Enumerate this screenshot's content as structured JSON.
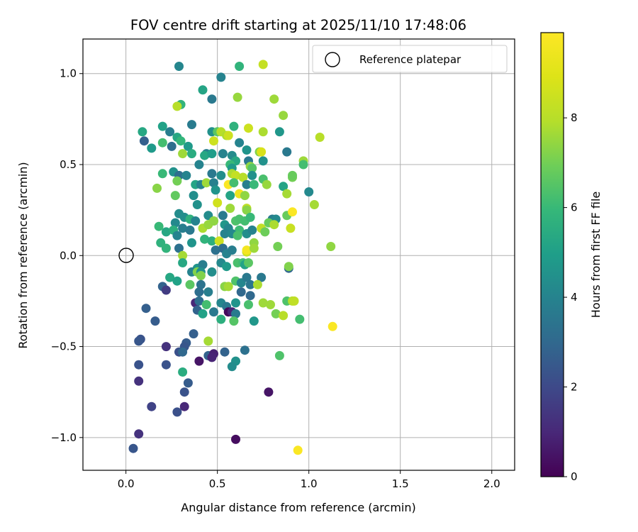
{
  "chart_data": {
    "type": "scatter",
    "title": "FOV centre drift starting at 2025/11/10 17:48:06",
    "xlabel": "Angular distance from reference (arcmin)",
    "ylabel": "Rotation from reference (arcmin)",
    "xlim": [
      -0.235,
      2.125
    ],
    "ylim": [
      -1.18,
      1.19
    ],
    "xticks": [
      0.0,
      0.5,
      1.0,
      1.5,
      2.0
    ],
    "xtick_labels": [
      "0.0",
      "0.5",
      "1.0",
      "1.5",
      "2.0"
    ],
    "yticks": [
      -1.0,
      -0.5,
      0.0,
      0.5,
      1.0
    ],
    "ytick_labels": [
      "−1.0",
      "−0.5",
      "0.0",
      "0.5",
      "1.0"
    ],
    "grid": true,
    "legend": {
      "label": "Reference platepar",
      "location": "top-right"
    },
    "reference_point": {
      "x": 0.0,
      "y": 0.0
    },
    "colorbar": {
      "label": "Hours from first FF file",
      "min": 0,
      "max": 9.9,
      "ticks": [
        0,
        2,
        4,
        6,
        8
      ],
      "tick_labels": [
        "0",
        "2",
        "4",
        "6",
        "8"
      ],
      "colormap": "viridis"
    },
    "points": [
      [
        0.29,
        1.04,
        4.1
      ],
      [
        0.52,
        0.98,
        4.0
      ],
      [
        0.62,
        1.04,
        5.8
      ],
      [
        0.75,
        1.05,
        8.3
      ],
      [
        0.42,
        0.91,
        5.2
      ],
      [
        0.47,
        0.86,
        3.6
      ],
      [
        0.61,
        0.87,
        7.5
      ],
      [
        0.81,
        0.86,
        7.6
      ],
      [
        0.3,
        0.83,
        5.8
      ],
      [
        0.28,
        0.82,
        8.0
      ],
      [
        0.86,
        0.77,
        7.5
      ],
      [
        0.36,
        0.72,
        3.7
      ],
      [
        0.59,
        0.71,
        5.7
      ],
      [
        0.67,
        0.7,
        8.5
      ],
      [
        0.47,
        0.68,
        4.5
      ],
      [
        0.5,
        0.68,
        6.6
      ],
      [
        0.52,
        0.68,
        8.0
      ],
      [
        0.75,
        0.68,
        7.8
      ],
      [
        0.84,
        0.68,
        4.7
      ],
      [
        1.06,
        0.65,
        8.0
      ],
      [
        0.09,
        0.68,
        5.3
      ],
      [
        0.2,
        0.71,
        5.1
      ],
      [
        0.24,
        0.68,
        3.8
      ],
      [
        0.1,
        0.63,
        2.7
      ],
      [
        0.14,
        0.59,
        4.8
      ],
      [
        0.28,
        0.65,
        5.3
      ],
      [
        0.2,
        0.62,
        6.2
      ],
      [
        0.3,
        0.63,
        5.9
      ],
      [
        0.48,
        0.63,
        8.5
      ],
      [
        0.55,
        0.66,
        7.8
      ],
      [
        0.56,
        0.66,
        8.5
      ],
      [
        0.62,
        0.62,
        4.0
      ],
      [
        0.66,
        0.58,
        4.6
      ],
      [
        0.73,
        0.57,
        7.2
      ],
      [
        0.74,
        0.57,
        8.8
      ],
      [
        0.88,
        0.57,
        3.6
      ],
      [
        0.97,
        0.52,
        7.6
      ],
      [
        0.97,
        0.5,
        6.2
      ],
      [
        0.25,
        0.6,
        3.2
      ],
      [
        0.34,
        0.6,
        4.8
      ],
      [
        0.36,
        0.56,
        5.5
      ],
      [
        0.31,
        0.56,
        7.6
      ],
      [
        0.44,
        0.56,
        3.8
      ],
      [
        0.43,
        0.55,
        5.3
      ],
      [
        0.47,
        0.56,
        4.9
      ],
      [
        0.53,
        0.56,
        4.0
      ],
      [
        0.58,
        0.55,
        4.3
      ],
      [
        0.6,
        0.52,
        5.3
      ],
      [
        0.67,
        0.52,
        3.6
      ],
      [
        0.75,
        0.52,
        4.5
      ],
      [
        0.4,
        0.5,
        4.0
      ],
      [
        0.57,
        0.5,
        6.0
      ],
      [
        0.58,
        0.48,
        4.8
      ],
      [
        0.68,
        0.49,
        7.4
      ],
      [
        0.69,
        0.48,
        6.5
      ],
      [
        0.91,
        0.43,
        7.0
      ],
      [
        0.91,
        0.44,
        6.8
      ],
      [
        0.2,
        0.45,
        6.0
      ],
      [
        0.26,
        0.46,
        4.5
      ],
      [
        0.29,
        0.44,
        3.2
      ],
      [
        0.33,
        0.44,
        4.0
      ],
      [
        0.47,
        0.45,
        3.6
      ],
      [
        0.52,
        0.44,
        4.4
      ],
      [
        0.58,
        0.45,
        7.8
      ],
      [
        0.6,
        0.44,
        8.3
      ],
      [
        0.64,
        0.43,
        8.0
      ],
      [
        0.69,
        0.44,
        4.5
      ],
      [
        0.75,
        0.42,
        6.3
      ],
      [
        0.77,
        0.39,
        7.5
      ],
      [
        0.28,
        0.41,
        7.0
      ],
      [
        0.38,
        0.39,
        5.2
      ],
      [
        0.41,
        0.39,
        4.0
      ],
      [
        0.44,
        0.4,
        7.6
      ],
      [
        0.48,
        0.4,
        3.9
      ],
      [
        0.56,
        0.39,
        9.8
      ],
      [
        0.59,
        0.4,
        6.2
      ],
      [
        0.66,
        0.39,
        3.8
      ],
      [
        0.7,
        0.39,
        6.0
      ],
      [
        0.86,
        0.38,
        5.2
      ],
      [
        1.0,
        0.35,
        4.2
      ],
      [
        0.17,
        0.37,
        7.3
      ],
      [
        0.27,
        0.33,
        6.7
      ],
      [
        0.37,
        0.33,
        4.4
      ],
      [
        0.49,
        0.36,
        4.6
      ],
      [
        0.57,
        0.33,
        5.2
      ],
      [
        0.62,
        0.34,
        9.5
      ],
      [
        0.65,
        0.33,
        7.4
      ],
      [
        0.88,
        0.34,
        7.7
      ],
      [
        0.39,
        0.28,
        4.5
      ],
      [
        0.5,
        0.29,
        8.6
      ],
      [
        0.57,
        0.26,
        7.6
      ],
      [
        0.66,
        0.26,
        8.2
      ],
      [
        0.66,
        0.25,
        7.3
      ],
      [
        1.03,
        0.28,
        7.7
      ],
      [
        0.29,
        0.23,
        4.3
      ],
      [
        0.32,
        0.21,
        4.4
      ],
      [
        0.35,
        0.2,
        5.7
      ],
      [
        0.38,
        0.19,
        4.0
      ],
      [
        0.45,
        0.22,
        4.3
      ],
      [
        0.48,
        0.19,
        6.0
      ],
      [
        0.53,
        0.22,
        3.7
      ],
      [
        0.6,
        0.19,
        6.4
      ],
      [
        0.62,
        0.2,
        6.3
      ],
      [
        0.65,
        0.19,
        6.2
      ],
      [
        0.68,
        0.21,
        6.0
      ],
      [
        0.8,
        0.2,
        3.7
      ],
      [
        0.82,
        0.2,
        4.2
      ],
      [
        0.88,
        0.22,
        6.8
      ],
      [
        0.91,
        0.24,
        9.8
      ],
      [
        0.27,
        0.18,
        4.2
      ],
      [
        0.31,
        0.15,
        3.8
      ],
      [
        0.18,
        0.16,
        6.0
      ],
      [
        0.22,
        0.13,
        5.3
      ],
      [
        0.26,
        0.14,
        5.6
      ],
      [
        0.35,
        0.14,
        3.6
      ],
      [
        0.42,
        0.15,
        7.8
      ],
      [
        0.45,
        0.17,
        7.5
      ],
      [
        0.48,
        0.19,
        7.4
      ],
      [
        0.54,
        0.17,
        4.7
      ],
      [
        0.56,
        0.15,
        4.1
      ],
      [
        0.62,
        0.14,
        6.1
      ],
      [
        0.66,
        0.12,
        4.4
      ],
      [
        0.69,
        0.14,
        4.0
      ],
      [
        0.74,
        0.15,
        8.2
      ],
      [
        0.76,
        0.13,
        6.9
      ],
      [
        0.78,
        0.18,
        6.8
      ],
      [
        0.81,
        0.17,
        7.8
      ],
      [
        0.9,
        0.15,
        8.4
      ],
      [
        0.28,
        0.11,
        4.0
      ],
      [
        0.36,
        0.07,
        4.6
      ],
      [
        0.43,
        0.09,
        5.8
      ],
      [
        0.47,
        0.08,
        5.6
      ],
      [
        0.54,
        0.12,
        4.0
      ],
      [
        0.58,
        0.12,
        4.2
      ],
      [
        0.61,
        0.11,
        6.3
      ],
      [
        0.51,
        0.08,
        8.5
      ],
      [
        0.7,
        0.07,
        7.4
      ],
      [
        0.19,
        0.07,
        5.7
      ],
      [
        0.22,
        0.04,
        5.8
      ],
      [
        0.29,
        0.04,
        3.3
      ],
      [
        0.49,
        0.03,
        3.3
      ],
      [
        0.53,
        0.04,
        3.2
      ],
      [
        0.55,
        0.01,
        4.0
      ],
      [
        0.58,
        0.03,
        3.8
      ],
      [
        0.66,
        0.02,
        8.5
      ],
      [
        0.66,
        0.03,
        9.6
      ],
      [
        0.7,
        0.04,
        7.6
      ],
      [
        0.83,
        0.05,
        7.0
      ],
      [
        1.12,
        0.05,
        7.4
      ],
      [
        0.31,
        0.0,
        7.7
      ],
      [
        0.31,
        -0.04,
        5.3
      ],
      [
        0.39,
        -0.07,
        4.6
      ],
      [
        0.42,
        -0.05,
        3.8
      ],
      [
        0.52,
        -0.04,
        4.2
      ],
      [
        0.55,
        -0.06,
        4.8
      ],
      [
        0.61,
        -0.04,
        6.3
      ],
      [
        0.64,
        -0.04,
        6.1
      ],
      [
        0.65,
        -0.05,
        5.1
      ],
      [
        0.67,
        -0.04,
        6.6
      ],
      [
        0.24,
        -0.12,
        5.3
      ],
      [
        0.28,
        -0.14,
        5.1
      ],
      [
        0.35,
        -0.16,
        6.6
      ],
      [
        0.36,
        -0.09,
        4.0
      ],
      [
        0.39,
        -0.09,
        7.2
      ],
      [
        0.41,
        -0.09,
        4.5
      ],
      [
        0.47,
        -0.09,
        4.4
      ],
      [
        0.41,
        -0.11,
        7.2
      ],
      [
        0.41,
        -0.16,
        3.4
      ],
      [
        0.54,
        -0.17,
        7.3
      ],
      [
        0.56,
        -0.17,
        7.7
      ],
      [
        0.6,
        -0.14,
        6.4
      ],
      [
        0.63,
        -0.15,
        4.1
      ],
      [
        0.66,
        -0.12,
        3.6
      ],
      [
        0.68,
        -0.16,
        3.5
      ],
      [
        0.74,
        -0.12,
        3.6
      ],
      [
        0.72,
        -0.16,
        7.8
      ],
      [
        0.89,
        -0.07,
        3.0
      ],
      [
        0.89,
        -0.06,
        7.2
      ],
      [
        0.2,
        -0.17,
        2.8
      ],
      [
        0.22,
        -0.19,
        1.6
      ],
      [
        0.4,
        -0.2,
        3.2
      ],
      [
        0.45,
        -0.2,
        3.8
      ],
      [
        0.63,
        -0.2,
        3.0
      ],
      [
        0.68,
        -0.22,
        3.0
      ],
      [
        0.38,
        -0.26,
        1.0
      ],
      [
        0.4,
        -0.25,
        3.2
      ],
      [
        0.44,
        -0.27,
        6.2
      ],
      [
        0.52,
        -0.26,
        4.1
      ],
      [
        0.55,
        -0.28,
        3.6
      ],
      [
        0.6,
        -0.26,
        4.6
      ],
      [
        0.67,
        -0.27,
        6.3
      ],
      [
        0.75,
        -0.26,
        7.6
      ],
      [
        0.79,
        -0.27,
        7.6
      ],
      [
        0.88,
        -0.25,
        6.4
      ],
      [
        0.91,
        -0.25,
        7.9
      ],
      [
        0.92,
        -0.25,
        8.2
      ],
      [
        0.11,
        -0.29,
        2.7
      ],
      [
        0.39,
        -0.3,
        2.8
      ],
      [
        0.42,
        -0.32,
        5.1
      ],
      [
        0.48,
        -0.31,
        3.6
      ],
      [
        0.56,
        -0.31,
        0.2
      ],
      [
        0.58,
        -0.31,
        0.9
      ],
      [
        0.6,
        -0.32,
        3.7
      ],
      [
        0.82,
        -0.32,
        7.0
      ],
      [
        0.86,
        -0.33,
        8.0
      ],
      [
        0.95,
        -0.35,
        6.2
      ],
      [
        0.16,
        -0.36,
        2.6
      ],
      [
        0.52,
        -0.35,
        5.6
      ],
      [
        0.59,
        -0.36,
        6.5
      ],
      [
        0.7,
        -0.36,
        4.7
      ],
      [
        1.13,
        -0.39,
        9.8
      ],
      [
        0.37,
        -0.43,
        2.7
      ],
      [
        0.08,
        -0.46,
        2.3
      ],
      [
        0.07,
        -0.47,
        2.4
      ],
      [
        0.45,
        -0.47,
        7.7
      ],
      [
        0.22,
        -0.5,
        1.3
      ],
      [
        0.33,
        -0.48,
        2.6
      ],
      [
        0.32,
        -0.5,
        2.4
      ],
      [
        0.29,
        -0.53,
        2.2
      ],
      [
        0.31,
        -0.53,
        3.0
      ],
      [
        0.45,
        -0.55,
        2.8
      ],
      [
        0.48,
        -0.54,
        0.8
      ],
      [
        0.54,
        -0.53,
        2.8
      ],
      [
        0.65,
        -0.52,
        3.3
      ],
      [
        0.84,
        -0.55,
        6.4
      ],
      [
        0.4,
        -0.58,
        0.5
      ],
      [
        0.47,
        -0.56,
        0.9
      ],
      [
        0.6,
        -0.58,
        4.5
      ],
      [
        0.58,
        -0.61,
        4.3
      ],
      [
        0.07,
        -0.6,
        2.3
      ],
      [
        0.22,
        -0.6,
        2.3
      ],
      [
        0.31,
        -0.64,
        5.5
      ],
      [
        0.07,
        -0.69,
        1.3
      ],
      [
        0.34,
        -0.7,
        2.6
      ],
      [
        0.32,
        -0.75,
        2.3
      ],
      [
        0.78,
        -0.75,
        0.5
      ],
      [
        0.32,
        -0.83,
        1.0
      ],
      [
        0.14,
        -0.83,
        1.8
      ],
      [
        0.28,
        -0.86,
        2.2
      ],
      [
        0.07,
        -0.98,
        1.3
      ],
      [
        0.6,
        -1.01,
        0.3
      ],
      [
        0.94,
        -1.07,
        9.8
      ],
      [
        0.04,
        -1.06,
        2.4
      ]
    ]
  }
}
